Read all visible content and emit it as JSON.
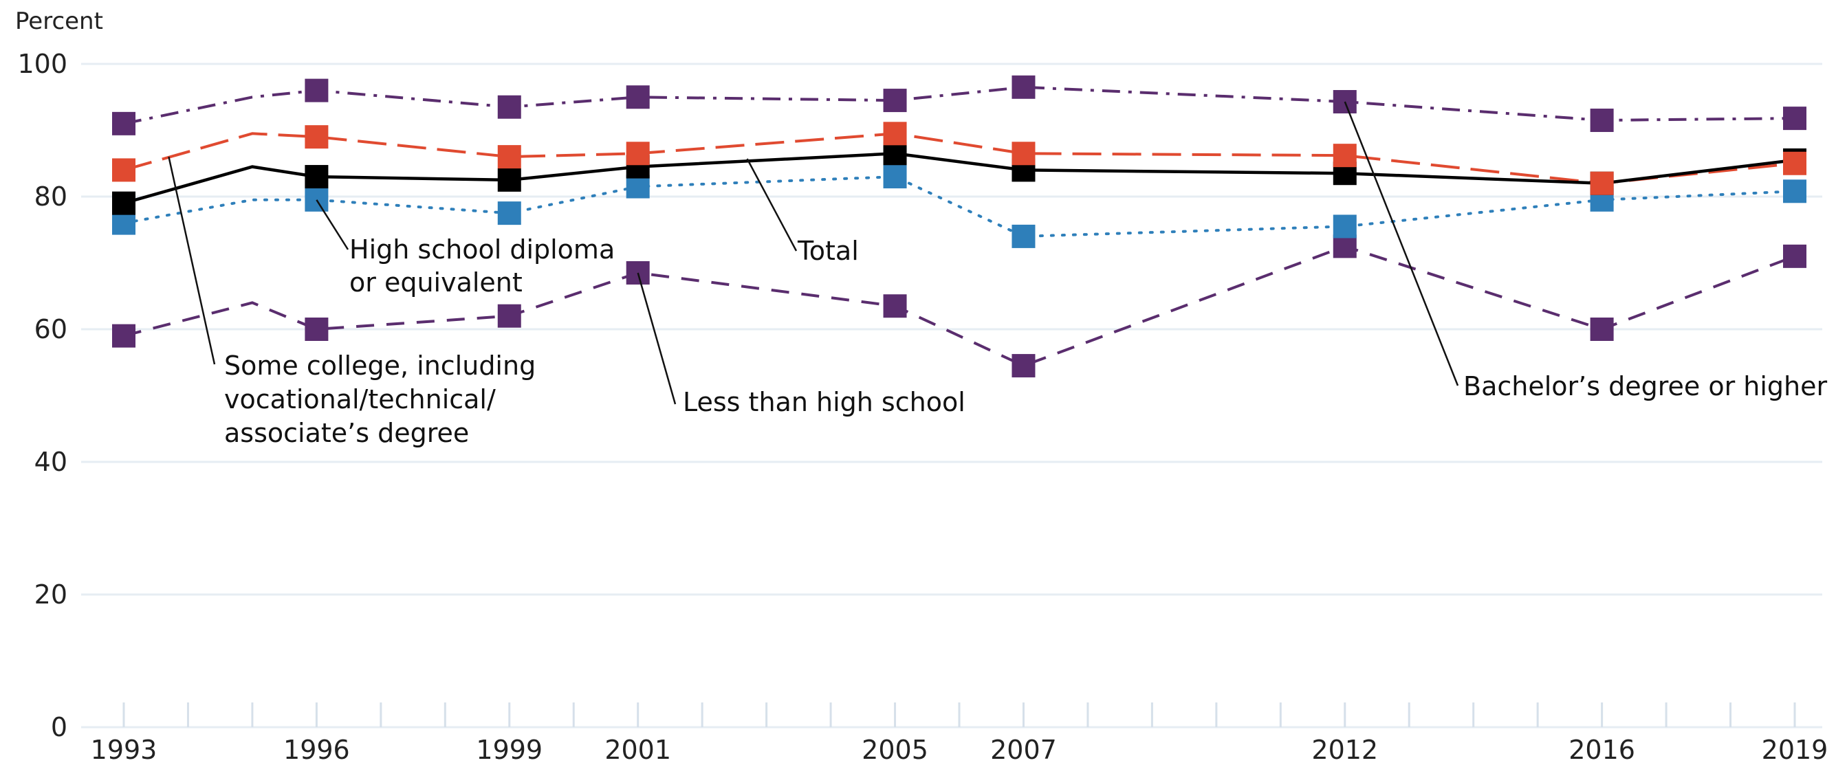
{
  "chart_data": {
    "type": "line",
    "ylabel": "Percent",
    "xlabel": "",
    "ylim": [
      0,
      100
    ],
    "yticks": [
      0,
      20,
      40,
      60,
      80,
      100
    ],
    "xlim": [
      1993,
      2019
    ],
    "x_tick_labels": [
      "1993",
      "1996",
      "1999",
      "2001",
      "2005",
      "2007",
      "2012",
      "2016",
      "2019"
    ],
    "x_minor_ticks": [
      1993,
      1994,
      1995,
      1996,
      1997,
      1998,
      1999,
      2000,
      2001,
      2002,
      2003,
      2004,
      2005,
      2006,
      2007,
      2008,
      2009,
      2010,
      2011,
      2012,
      2013,
      2014,
      2015,
      2016,
      2017,
      2018,
      2019
    ],
    "grid": true,
    "series": [
      {
        "name": "Bachelor’s degree or higher",
        "color": "#5a2d6e",
        "dash": "dashdot",
        "x": [
          1993,
          1995,
          1996,
          1999,
          2001,
          2005,
          2007,
          2012,
          2016,
          2019
        ],
        "y": [
          91,
          95,
          96,
          93.5,
          95,
          94.5,
          96.5,
          94.3,
          91.5,
          91.8
        ],
        "markers": [
          1993,
          1996,
          1999,
          2001,
          2005,
          2007,
          2012,
          2016,
          2019
        ]
      },
      {
        "name": "Some college, including vocational/technical/associate’s degree",
        "color": "#e04a30",
        "dash": "longdash",
        "x": [
          1993,
          1995,
          1996,
          1999,
          2001,
          2005,
          2007,
          2012,
          2016,
          2019
        ],
        "y": [
          84,
          89.5,
          89,
          86,
          86.5,
          89.5,
          86.5,
          86.2,
          82,
          85
        ],
        "markers": [
          1993,
          1996,
          1999,
          2001,
          2005,
          2007,
          2012,
          2016,
          2019
        ]
      },
      {
        "name": "Total",
        "color": "#000000",
        "dash": "solid",
        "x": [
          1993,
          1995,
          1996,
          1999,
          2001,
          2005,
          2007,
          2012,
          2016,
          2019
        ],
        "y": [
          79,
          84.5,
          83,
          82.5,
          84.5,
          86.5,
          84,
          83.5,
          82,
          85.5
        ],
        "markers": [
          1993,
          1996,
          1999,
          2001,
          2005,
          2007,
          2012,
          2016,
          2019
        ]
      },
      {
        "name": "High school diploma or equivalent",
        "color": "#2e7fba",
        "dash": "dotted",
        "x": [
          1993,
          1995,
          1996,
          1999,
          2001,
          2005,
          2007,
          2012,
          2016,
          2019
        ],
        "y": [
          76,
          79.5,
          79.5,
          77.5,
          81.5,
          83,
          74,
          75.5,
          79.5,
          80.8
        ],
        "markers": [
          1993,
          1996,
          1999,
          2001,
          2005,
          2007,
          2012,
          2016,
          2019
        ]
      },
      {
        "name": "Less than high school",
        "color": "#5a2d6e",
        "dash": "dashed",
        "x": [
          1993,
          1995,
          1996,
          1999,
          2001,
          2005,
          2007,
          2012,
          2016,
          2019
        ],
        "y": [
          59,
          64,
          60,
          62,
          68.5,
          63.5,
          54.5,
          72.5,
          60,
          71
        ],
        "markers": [
          1993,
          1996,
          1999,
          2001,
          2005,
          2007,
          2012,
          2016,
          2019
        ]
      }
    ],
    "annotations": [
      {
        "series": 3,
        "lines": [
          "High school diploma",
          "or equivalent"
        ],
        "point": [
          1996,
          79.5
        ]
      },
      {
        "series": 2,
        "lines": [
          "Total"
        ],
        "point": [
          2002.7,
          85.7
        ]
      },
      {
        "series": 1,
        "lines": [
          "Some college, including",
          "vocational/technical/",
          "associate’s degree"
        ],
        "point": [
          1993.7,
          86
        ]
      },
      {
        "series": 4,
        "lines": [
          "Less than high school"
        ],
        "point": [
          2001,
          68.5
        ]
      },
      {
        "series": 0,
        "lines": [
          "Bachelor’s degree or higher"
        ],
        "point": [
          2012,
          94.3
        ]
      }
    ]
  }
}
